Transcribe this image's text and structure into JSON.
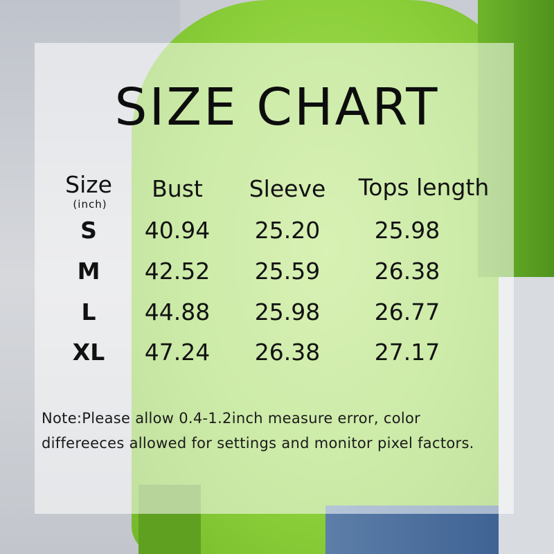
{
  "title": "SIZE CHART",
  "table": {
    "headers": [
      "Size",
      "Bust",
      "Sleeve",
      "Tops length"
    ],
    "unit": "(inch)",
    "rows": [
      [
        "S",
        "40.94",
        "25.20",
        "25.98"
      ],
      [
        "M",
        "42.52",
        "25.59",
        "26.38"
      ],
      [
        "L",
        "44.88",
        "25.98",
        "26.77"
      ],
      [
        "XL",
        "47.24",
        "26.38",
        "27.17"
      ]
    ]
  },
  "note": {
    "line1": "Note:Please allow 0.4-1.2inch measure error, color",
    "line2": "differeeces allowed for settings and monitor pixel factors."
  },
  "colors": {
    "sweater": "#8bcf3a",
    "text": "#111111"
  }
}
